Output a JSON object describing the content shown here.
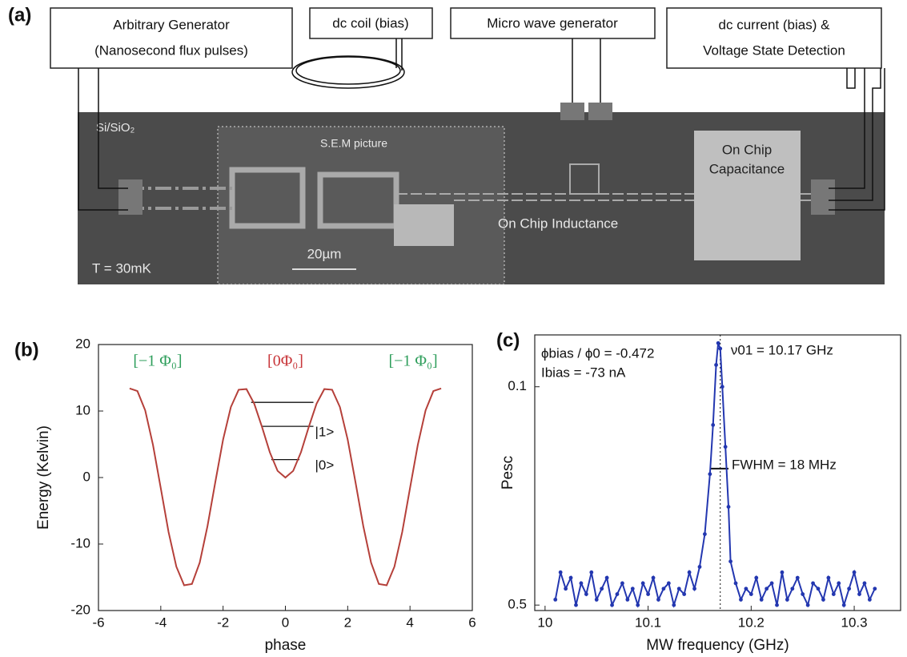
{
  "diagram": {
    "panel": "(a)",
    "boxes": [
      [
        "Arbitrary Generator",
        "(Nanosecond flux pulses)"
      ],
      [
        "dc coil (bias)"
      ],
      [
        "Micro wave generator"
      ],
      [
        "dc current (bias) &",
        "Voltage State Detection"
      ]
    ],
    "chip": {
      "substrate": "Si/SiO₂",
      "sem": "S.E.M picture",
      "scale": "20µm",
      "inductance": "On Chip Inductance",
      "capacitance": [
        "On Chip",
        "Capacitance"
      ],
      "temperature": "T = 30mK"
    }
  },
  "chart_data": [
    {
      "type": "line",
      "panel": "(b)",
      "xlabel": "phase",
      "ylabel": "Energy (Kelvin)",
      "x": [
        -5,
        -4.75,
        -4.5,
        -4.25,
        -4,
        -3.75,
        -3.5,
        -3.25,
        -3,
        -2.75,
        -2.5,
        -2.25,
        -2,
        -1.75,
        -1.5,
        -1.25,
        -1,
        -0.75,
        -0.5,
        -0.25,
        0,
        0.25,
        0.5,
        0.75,
        1,
        1.25,
        1.5,
        1.75,
        2,
        2.25,
        2.5,
        2.75,
        3,
        3.25,
        3.5,
        3.75,
        4,
        4.25,
        4.5,
        4.75,
        5
      ],
      "series": [
        {
          "color": "#b5403a",
          "values": [
            13.4,
            13.0,
            10.1,
            4.9,
            -1.6,
            -8.2,
            -13.4,
            -16.2,
            -16.0,
            -12.8,
            -7.3,
            -0.7,
            5.7,
            10.6,
            13.2,
            13.3,
            11.1,
            7.6,
            3.8,
            1.0,
            0,
            1.0,
            3.8,
            7.6,
            11.1,
            13.3,
            13.2,
            10.6,
            5.7,
            -0.7,
            -7.3,
            -12.8,
            -16.0,
            -16.2,
            -13.4,
            -8.2,
            -1.6,
            4.9,
            10.1,
            13.0,
            13.4
          ]
        }
      ],
      "levels": [
        11.3,
        7.7,
        2.7
      ],
      "level_labels": [
        "|1>",
        "|0>"
      ],
      "annotations": [
        {
          "text": "[−1 Φ₀]",
          "color": "#2e9e5b"
        },
        {
          "text": "[0Φ₀]",
          "color": "#c8363a"
        },
        {
          "text": "[−1 Φ₀]",
          "color": "#2e9e5b"
        }
      ],
      "xlim": [
        -6,
        6
      ],
      "xticks": [
        -6,
        -4,
        -2,
        0,
        2,
        4,
        6
      ],
      "ylim": [
        -20,
        20
      ],
      "yticks": [
        -20,
        -10,
        0,
        10,
        20
      ]
    },
    {
      "type": "line",
      "panel": "(c)",
      "xlabel": "MW frequency (GHz)",
      "ylabel": "Pesc",
      "x": [
        10.01,
        10.015,
        10.02,
        10.025,
        10.03,
        10.035,
        10.04,
        10.045,
        10.05,
        10.055,
        10.06,
        10.065,
        10.07,
        10.075,
        10.08,
        10.085,
        10.09,
        10.095,
        10.1,
        10.105,
        10.11,
        10.115,
        10.12,
        10.125,
        10.13,
        10.135,
        10.14,
        10.145,
        10.15,
        10.155,
        10.16,
        10.163,
        10.166,
        10.168,
        10.17,
        10.172,
        10.175,
        10.178,
        10.18,
        10.185,
        10.19,
        10.195,
        10.2,
        10.205,
        10.21,
        10.215,
        10.22,
        10.225,
        10.23,
        10.235,
        10.24,
        10.245,
        10.25,
        10.255,
        10.26,
        10.265,
        10.27,
        10.275,
        10.28,
        10.285,
        10.29,
        10.295,
        10.3,
        10.305,
        10.31,
        10.315,
        10.32
      ],
      "series": [
        {
          "color": "#2337b0",
          "values": [
            0.49,
            0.44,
            0.47,
            0.45,
            0.5,
            0.46,
            0.48,
            0.44,
            0.49,
            0.47,
            0.45,
            0.5,
            0.48,
            0.46,
            0.49,
            0.47,
            0.5,
            0.46,
            0.48,
            0.45,
            0.49,
            0.47,
            0.46,
            0.5,
            0.47,
            0.48,
            0.44,
            0.47,
            0.43,
            0.37,
            0.26,
            0.17,
            0.06,
            0.02,
            0.03,
            0.1,
            0.21,
            0.32,
            0.42,
            0.46,
            0.49,
            0.47,
            0.48,
            0.45,
            0.49,
            0.47,
            0.46,
            0.5,
            0.44,
            0.49,
            0.47,
            0.45,
            0.48,
            0.5,
            0.46,
            0.47,
            0.49,
            0.45,
            0.48,
            0.46,
            0.5,
            0.47,
            0.44,
            0.48,
            0.46,
            0.49,
            0.47
          ]
        }
      ],
      "resonance": 10.17,
      "fwhm": {
        "y": 0.25,
        "x": [
          10.16,
          10.178
        ]
      },
      "annotations": [
        {
          "text": "ϕbias / ϕ0 =  -0.472"
        },
        {
          "text": "Ibias =  -73 nA"
        },
        {
          "text": "ν01  = 10.17 GHz"
        },
        {
          "text": "FWHM = 18 MHz"
        }
      ],
      "xlim": [
        9.99,
        10.345
      ],
      "xticks": [
        10,
        10.1,
        10.2,
        10.3
      ],
      "ylim": [
        0.51,
        0.005
      ],
      "yticks": [
        0.1,
        0.5
      ]
    }
  ]
}
